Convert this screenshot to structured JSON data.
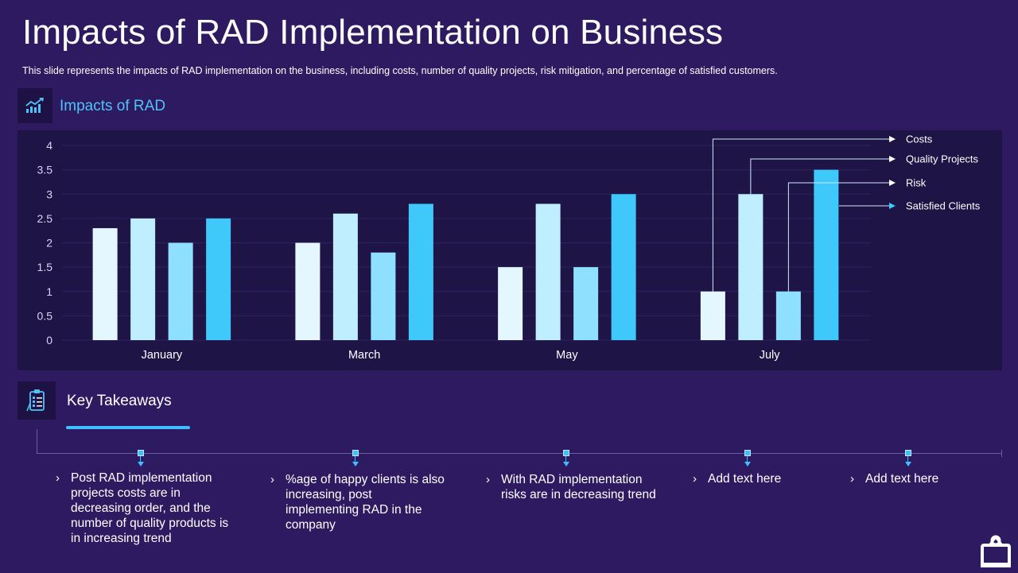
{
  "header": {
    "title": "Impacts of RAD Implementation on Business",
    "subtitle": "This slide represents the impacts of RAD implementation on the business, including costs, number of quality projects, risk mitigation, and percentage of satisfied customers."
  },
  "chart_section": {
    "title": "Impacts of RAD",
    "icon": "growth-chart-icon"
  },
  "chart_data": {
    "type": "bar",
    "categories": [
      "January",
      "March",
      "May",
      "July"
    ],
    "series": [
      {
        "name": "Costs",
        "values": [
          2.3,
          2.0,
          1.5,
          1.0
        ],
        "color": "#e4f7ff"
      },
      {
        "name": "Quality Projects",
        "values": [
          2.5,
          2.6,
          2.8,
          3.0
        ],
        "color": "#bfeeff"
      },
      {
        "name": "Risk",
        "values": [
          2.0,
          1.8,
          1.5,
          1.0
        ],
        "color": "#8fe0ff"
      },
      {
        "name": "Satisfied Clients",
        "values": [
          2.5,
          2.8,
          3.0,
          3.5
        ],
        "color": "#3fc8fa"
      }
    ],
    "ylim": [
      0,
      4
    ],
    "yticks": [
      "0",
      "0.5",
      "1",
      "1.5",
      "2",
      "2.5",
      "3",
      "3.5",
      "4"
    ],
    "title": "",
    "xlabel": "",
    "ylabel": "",
    "grid": true,
    "legend": "callouts pointing to July bars, right side"
  },
  "takeaways_section": {
    "title": "Key Takeaways",
    "icon": "clipboard-checklist-icon",
    "bullet": "›",
    "items": [
      {
        "text": "Post RAD implementation projects costs are in decreasing order, and the number of quality products is in increasing trend"
      },
      {
        "text": "%age of happy clients is also increasing, post implementing RAD in the company"
      },
      {
        "text": "With RAD implementation risks are in decreasing trend"
      },
      {
        "text": "Add text here"
      },
      {
        "text": "Add text here"
      }
    ]
  },
  "colors": {
    "background": "#2e1a61",
    "panel": "#1f1446",
    "accent": "#3fbfff",
    "section_title": "#4fc3f7"
  },
  "footer": {
    "icon": "presentation-screen-icon"
  }
}
